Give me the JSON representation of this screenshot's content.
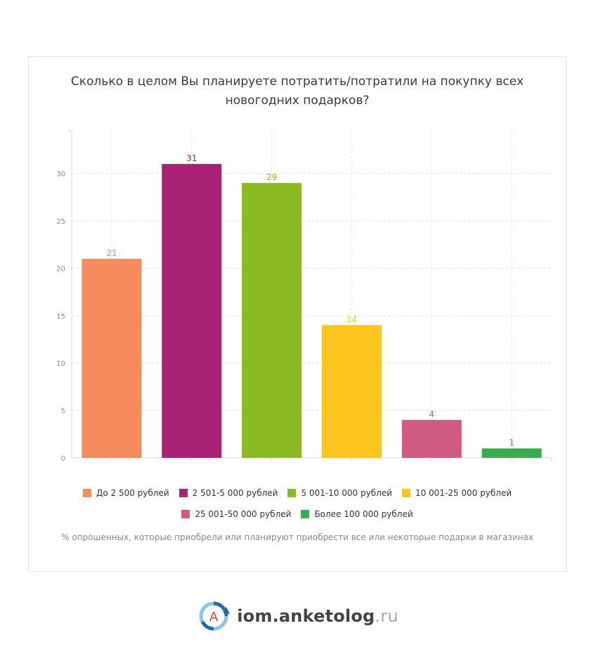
{
  "chart_data": {
    "type": "bar",
    "title": "Сколько в целом Вы планируете потратить/потратили на покупку всех новогодних подарков?",
    "categories": [
      "До 2 500 рублей",
      "2 501-5 000 рублей",
      "5 001-10 000 рублей",
      "10 001-25 000 рублей",
      "25 001-50 000 рублей",
      "Более 100 000 рублей"
    ],
    "values": [
      21,
      31,
      29,
      14,
      4,
      1
    ],
    "colors": [
      "#f68b5e",
      "#a82175",
      "#8cba22",
      "#fbc41e",
      "#d05a80",
      "#3caa50"
    ],
    "yticks": [
      0,
      5,
      10,
      15,
      20,
      25,
      30
    ],
    "ylim": [
      0,
      34.5
    ],
    "grid": true,
    "legend": "bottom",
    "note": "% опрошенных, которые приобрели или планируют приобрести все или некоторые подарки в магазинах"
  },
  "brand": {
    "logo_letter": "A",
    "name": "iom.anketolog",
    "tld": ".ru"
  }
}
